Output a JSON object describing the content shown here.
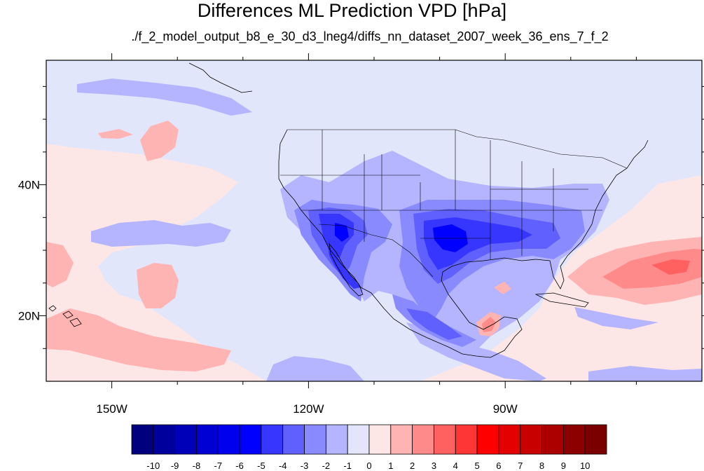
{
  "title": "Differences ML Prediction VPD [hPa]",
  "subtitle": "./f_2_model_output_b8_e_30_d3_lneg4/diffs_nn_dataset_2007_week_36_ens_7_f_2",
  "map": {
    "lon_range": [
      -160,
      -60
    ],
    "lat_range": [
      10,
      59
    ],
    "x_ticks": [
      {
        "value": -150,
        "label": "150W"
      },
      {
        "value": -120,
        "label": "120W"
      },
      {
        "value": -90,
        "label": "90W"
      }
    ],
    "y_ticks": [
      {
        "value": 40,
        "label": "40N"
      },
      {
        "value": 20,
        "label": "20N"
      }
    ]
  },
  "colorbar": {
    "levels": [
      -10,
      -9,
      -8,
      -7,
      -6,
      -5,
      -4,
      -3,
      -2,
      -1,
      0,
      1,
      2,
      3,
      4,
      5,
      6,
      7,
      8,
      9,
      10
    ],
    "labels": [
      "-10",
      "-9",
      "-8",
      "-7",
      "-6",
      "-5",
      "-4",
      "-3",
      "-2",
      "-1",
      "0",
      "1",
      "2",
      "3",
      "4",
      "5",
      "6",
      "7",
      "8",
      "9",
      "10"
    ],
    "colors": [
      "#00007f",
      "#00009c",
      "#0000b8",
      "#0000d4",
      "#0000ef",
      "#0000ff",
      "#3636ff",
      "#6060ff",
      "#8a8aff",
      "#b4b4ff",
      "#e2e6fb",
      "#fde6e6",
      "#ffb4b4",
      "#ff8a8a",
      "#ff6060",
      "#ff3636",
      "#ff0000",
      "#e40000",
      "#c80000",
      "#ac0000",
      "#8c0000",
      "#7a0000"
    ]
  }
}
